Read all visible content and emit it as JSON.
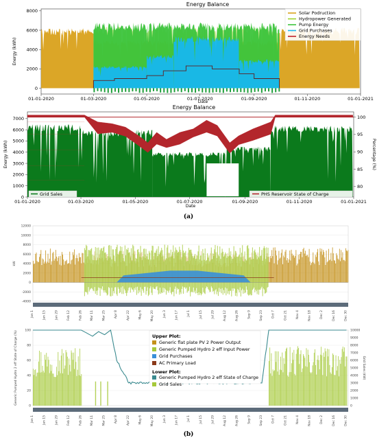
{
  "caption_a": "(a)",
  "caption_b": "(b)",
  "chart_data": [
    {
      "type": "area",
      "title": "Energy Balance",
      "xlabel": "Date",
      "ylabel": "Energy (kWh)",
      "ylim": [
        -600,
        8200
      ],
      "yticks": [
        0,
        2000,
        4000,
        6000,
        8000
      ],
      "xticks": [
        "01-01-2020",
        "01-03-2020",
        "01-05-2020",
        "01-07-2020",
        "01-09-2020",
        "01-11-2020",
        "01-01-2021"
      ],
      "legend_position": "top-right",
      "series": [
        {
          "name": "Solar Podruction",
          "color": "#d9a11b",
          "segments": [
            {
              "from": "2020-01-01",
              "to": "2020-03-01",
              "level": 6200
            },
            {
              "from": "2020-03-01",
              "to": "2020-09-30",
              "level": 5000
            },
            {
              "from": "2020-09-30",
              "to": "2020-12-31",
              "level": 6300
            }
          ]
        },
        {
          "name": "Hydropower Generated",
          "color": "#9bd22a",
          "segments": [
            {
              "from": "2020-03-01",
              "to": "2020-09-30",
              "level": 6400
            }
          ]
        },
        {
          "name": "Pump Energy",
          "color": "#3cc43c",
          "segments": [
            {
              "from": "2020-03-01",
              "to": "2020-09-30",
              "level": 6800
            }
          ]
        },
        {
          "name": "Grid Purchases",
          "color": "#17b7ee",
          "segments": [
            {
              "from": "2020-03-01",
              "to": "2020-05-01",
              "level": 2300
            },
            {
              "from": "2020-05-01",
              "to": "2020-06-01",
              "level": 3500
            },
            {
              "from": "2020-06-01",
              "to": "2020-08-15",
              "level": 5400
            },
            {
              "from": "2020-08-15",
              "to": "2020-09-30",
              "level": 3000
            }
          ]
        },
        {
          "name": "Energy Needs",
          "color": "#c0212a",
          "steps": [
            {
              "from": "2020-03-01",
              "to": "2020-03-25",
              "level": 800
            },
            {
              "from": "2020-03-25",
              "to": "2020-05-01",
              "level": 1000
            },
            {
              "from": "2020-05-01",
              "to": "2020-05-20",
              "level": 1300
            },
            {
              "from": "2020-05-20",
              "to": "2020-06-15",
              "level": 1800
            },
            {
              "from": "2020-06-15",
              "to": "2020-07-15",
              "level": 2300
            },
            {
              "from": "2020-07-15",
              "to": "2020-08-15",
              "level": 2000
            },
            {
              "from": "2020-08-15",
              "to": "2020-09-01",
              "level": 1500
            },
            {
              "from": "2020-09-01",
              "to": "2020-09-30",
              "level": 1000
            }
          ]
        }
      ]
    },
    {
      "type": "area",
      "title": "Energy Balance",
      "xlabel": "Date",
      "ylabel": "Energy (kWh)",
      "y2label": "Percentage (%)",
      "ylim": [
        0,
        7600
      ],
      "y2lim": [
        77,
        101.5
      ],
      "yticks": [
        0,
        1000,
        2000,
        3000,
        4000,
        5000,
        6000,
        7000
      ],
      "y2ticks": [
        80,
        85,
        90,
        95,
        100
      ],
      "xticks": [
        "01-01-2020",
        "01-03-2020",
        "01-05-2020",
        "01-07-2020",
        "01-09-2020",
        "01-11-2020",
        "01-01-2021"
      ],
      "legend": [
        {
          "name": "Grid Sales",
          "position": "bottom-left",
          "color": "#0b7a1c"
        },
        {
          "name": "PHS Reservoir State of Charge",
          "position": "bottom-right",
          "color": "#b3262c"
        }
      ],
      "series": [
        {
          "name": "Grid Sales",
          "color": "#0b7a1c",
          "segments": [
            {
              "from": "2020-01-01",
              "to": "2020-03-01",
              "level": 6500
            },
            {
              "from": "2020-03-01",
              "to": "2020-05-20",
              "level": 6000
            },
            {
              "from": "2020-05-20",
              "to": "2020-08-10",
              "level": 4000
            },
            {
              "from": "2020-08-10",
              "to": "2020-09-30",
              "level": 4500
            },
            {
              "from": "2020-09-30",
              "to": "2020-12-31",
              "level": 6400
            }
          ]
        },
        {
          "name": "PHS Reservoir State of Charge",
          "color": "#b3262c",
          "points": [
            [
              "2020-01-01",
              100
            ],
            [
              "2020-03-05",
              100
            ],
            [
              "2020-03-20",
              98
            ],
            [
              "2020-04-05",
              97.5
            ],
            [
              "2020-04-20",
              96.5
            ],
            [
              "2020-05-05",
              94
            ],
            [
              "2020-05-15",
              92
            ],
            [
              "2020-05-25",
              95
            ],
            [
              "2020-06-05",
              93
            ],
            [
              "2020-06-20",
              95
            ],
            [
              "2020-07-05",
              96
            ],
            [
              "2020-07-20",
              98.5
            ],
            [
              "2020-08-01",
              97
            ],
            [
              "2020-08-15",
              92
            ],
            [
              "2020-08-25",
              94
            ],
            [
              "2020-09-10",
              96
            ],
            [
              "2020-09-30",
              98
            ],
            [
              "2020-10-05",
              100
            ],
            [
              "2020-12-31",
              100
            ]
          ]
        }
      ]
    },
    {
      "type": "area",
      "ylabel": "kW",
      "ylim": [
        -4000,
        12000
      ],
      "yticks": [
        -4000,
        -2000,
        0,
        2000,
        4000,
        6000,
        8000,
        10000,
        12000
      ],
      "xticks": [
        "Jan 1",
        "Jan 15",
        "Jan 29",
        "Feb 12",
        "Feb 26",
        "Mar 11",
        "Mar 25",
        "Apr 8",
        "Apr 22",
        "May 6",
        "May 20",
        "Jun 3",
        "Jun 17",
        "Jul 1",
        "Jul 15",
        "Jul 29",
        "Aug 12",
        "Aug 26",
        "Sep 9",
        "Sep 23",
        "Oct 7",
        "Oct 21",
        "Nov 4",
        "Nov 18",
        "Dec 2",
        "Dec 16",
        "Dec 30"
      ],
      "series": [
        {
          "name": "Generic flat plate PV 2 Power Output",
          "color": "#c4911c",
          "level": 6500
        },
        {
          "name": "Generic Pumped Hydro 2 eff Input Power",
          "color": "#a6c93a",
          "segments": [
            {
              "from": "Mar 1",
              "to": "Sep 30",
              "level": 8000
            }
          ]
        },
        {
          "name": "Grid Purchases",
          "color": "#3a8fd8",
          "segments": [
            {
              "from": "Apr 8",
              "to": "Sep 10",
              "level": 2500
            }
          ]
        },
        {
          "name": "AC Primary Load",
          "color": "#8b3a1a",
          "level": 1000
        }
      ]
    },
    {
      "type": "area",
      "ylabel": "Generic Pumped Hydro 2 eff State of Charge (%)",
      "y2label": "Grid Sales (kW)",
      "ylim": [
        0,
        100
      ],
      "yticks": [
        0,
        20,
        40,
        60,
        80,
        100
      ],
      "y2lim": [
        0,
        10000
      ],
      "y2ticks": [
        0,
        1000,
        2000,
        3000,
        4000,
        5000,
        6000,
        7000,
        8000,
        9000,
        10000
      ],
      "xticks": [
        "Jan 1",
        "Jan 15",
        "Jan 29",
        "Feb 12",
        "Feb 26",
        "Mar 11",
        "Mar 25",
        "Apr 8",
        "Apr 22",
        "May 6",
        "May 20",
        "Jun 3",
        "Jun 17",
        "Jul 1",
        "Jul 15",
        "Jul 29",
        "Aug 12",
        "Aug 26",
        "Sep 9",
        "Sep 23",
        "Oct 7",
        "Oct 21",
        "Nov 4",
        "Nov 18",
        "Dec 2",
        "Dec 16",
        "Dec 30"
      ],
      "legend_position": "top-center",
      "legend_title_upper": "Upper Plot:",
      "legend_title_lower": "Lower Plot:",
      "legend_upper": [
        {
          "name": "Generic flat plate PV 2 Power Output",
          "color": "#c4911c"
        },
        {
          "name": "Generic Pumped Hydro 2 eff Input Power",
          "color": "#a6c93a"
        },
        {
          "name": "Grid Purchases",
          "color": "#3a8fd8"
        },
        {
          "name": "AC Primary Load",
          "color": "#8b3a1a"
        }
      ],
      "legend_lower": [
        {
          "name": "Generic Pumped Hydro 2 eff State of Charge",
          "color": "#3a8a8f"
        },
        {
          "name": "Grid Sales",
          "color": "#a6c93a"
        }
      ],
      "series": [
        {
          "name": "Generic Pumped Hydro 2 eff State of Charge",
          "color": "#3a8a8f",
          "points": [
            [
              "Jan 1",
              100
            ],
            [
              "Feb 26",
              100
            ],
            [
              "Mar 11",
              92
            ],
            [
              "Mar 18",
              98
            ],
            [
              "Mar 25",
              94
            ],
            [
              "Apr 1",
              100
            ],
            [
              "Apr 8",
              60
            ],
            [
              "Apr 22",
              30
            ],
            [
              "Sep 23",
              30
            ],
            [
              "Oct 1",
              100
            ],
            [
              "Dec 30",
              100
            ]
          ]
        },
        {
          "name": "Grid Sales",
          "color": "#a6c93a",
          "segments": [
            {
              "from": "Jan 1",
              "to": "Feb 26",
              "level": 7500
            },
            {
              "from": "Oct 1",
              "to": "Dec 30",
              "level": 7500
            }
          ]
        }
      ]
    }
  ]
}
